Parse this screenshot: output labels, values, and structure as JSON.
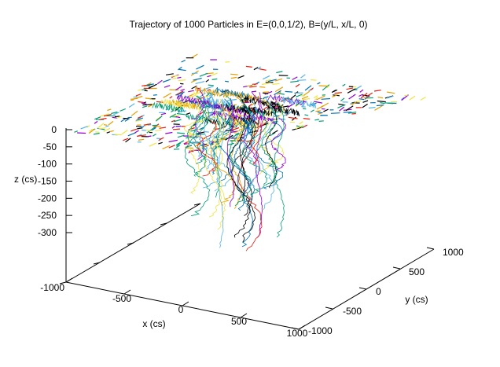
{
  "chart_data": {
    "type": "line",
    "title": "Trajectory of 1000 Particles in E=(0,0,1/2), B=(y/L, x/L, 0)",
    "xlabel": "x (cs)",
    "ylabel": "y (cs)",
    "zlabel": "z (cs)",
    "xlim": [
      -1000,
      1000
    ],
    "ylim": [
      -1000,
      1000
    ],
    "zlim": [
      -300,
      0
    ],
    "x_ticks": [
      "-1000",
      "-500",
      "0",
      "500",
      "1000"
    ],
    "y_ticks": [
      "-1000",
      "-500",
      "0",
      "500",
      "1000"
    ],
    "z_ticks": [
      "0",
      "-50",
      "-100",
      "-150",
      "-200",
      "-250",
      "-300"
    ],
    "series_colors": [
      "#9400d3",
      "#009e73",
      "#56b4e9",
      "#e69f00",
      "#f0e442",
      "#0072b2",
      "#e51e10",
      "#000000"
    ],
    "particle_count": 1000,
    "grid": false,
    "legend": "none"
  }
}
